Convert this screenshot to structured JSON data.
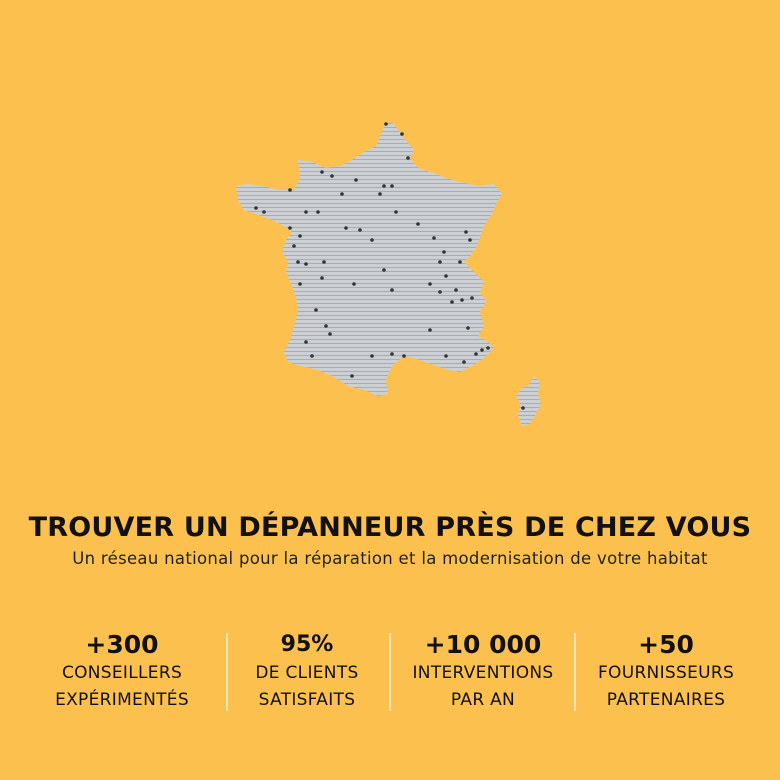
{
  "colors": {
    "background": "#FCC04F",
    "map_fill": "#C8CBCE",
    "map_stripe": "#AEB2B6",
    "dot": "#2E3438",
    "text": "#111111",
    "separator": "#FFE7B5"
  },
  "map": {
    "icon": "france-map-with-locations-icon"
  },
  "headline": "TROUVER UN DÉPANNEUR PRÈS DE CHEZ VOUS",
  "subline": "Un réseau national pour la réparation et la modernisation de votre habitat",
  "stats": [
    {
      "value": "+300",
      "label_line1": "CONSEILLERS",
      "label_line2": "EXPÉRIMENTÉS"
    },
    {
      "value": "95%",
      "label_line1": "DE CLIENTS",
      "label_line2": "SATISFAITS"
    },
    {
      "value": "+10 000",
      "label_line1": "INTERVENTIONS",
      "label_line2": "PAR AN"
    },
    {
      "value": "+50",
      "label_line1": "FOURNISSEURS",
      "label_line2": "PARTENAIRES"
    }
  ]
}
